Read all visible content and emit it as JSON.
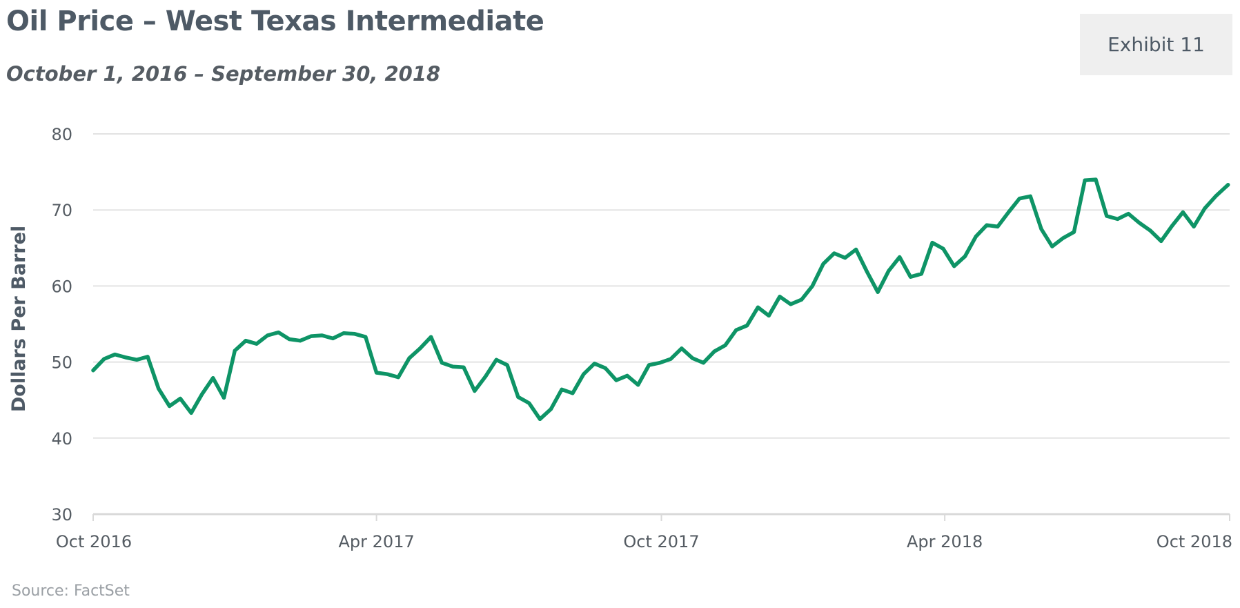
{
  "header": {
    "title": "Oil Price – West Texas Intermediate",
    "subtitle": "October 1, 2016 – September 30, 2018",
    "exhibit_label": "Exhibit 11"
  },
  "footer": {
    "source": "Source: FactSet"
  },
  "colors": {
    "line": "#0e9466",
    "grid": "#d9d9d9",
    "axis": "#d9d9d9",
    "text": "#4e5a66"
  },
  "chart_data": {
    "type": "line",
    "title": "Oil Price – West Texas Intermediate",
    "subtitle": "October 1, 2016 – September 30, 2018",
    "xlabel": "",
    "ylabel": "Dollars Per Barrel",
    "ylim": [
      30,
      80
    ],
    "yticks": [
      30,
      40,
      50,
      60,
      70,
      80
    ],
    "xlim": [
      "2016-10-01",
      "2018-10-01"
    ],
    "xticks": [
      {
        "date": "2016-10-01",
        "label": "Oct 2016"
      },
      {
        "date": "2017-04-01",
        "label": "Apr 2017"
      },
      {
        "date": "2017-10-01",
        "label": "Oct 2017"
      },
      {
        "date": "2018-04-01",
        "label": "Apr 2018"
      },
      {
        "date": "2018-10-01",
        "label": "Oct 2018"
      }
    ],
    "grid": true,
    "legend": "none",
    "series": [
      {
        "x": [
          "2016-10-01",
          "2016-10-08",
          "2016-10-15",
          "2016-10-22",
          "2016-10-29",
          "2016-11-05",
          "2016-11-12",
          "2016-11-19",
          "2016-11-26",
          "2016-12-03",
          "2016-12-10",
          "2016-12-17",
          "2016-12-24",
          "2016-12-31",
          "2017-01-07",
          "2017-01-14",
          "2017-01-21",
          "2017-01-28",
          "2017-02-04",
          "2017-02-11",
          "2017-02-18",
          "2017-02-25",
          "2017-03-04",
          "2017-03-11",
          "2017-03-18",
          "2017-03-25",
          "2017-04-01",
          "2017-04-08",
          "2017-04-15",
          "2017-04-22",
          "2017-04-29",
          "2017-05-06",
          "2017-05-13",
          "2017-05-20",
          "2017-05-27",
          "2017-06-03",
          "2017-06-10",
          "2017-06-17",
          "2017-06-24",
          "2017-07-01",
          "2017-07-08",
          "2017-07-15",
          "2017-07-22",
          "2017-07-29",
          "2017-08-05",
          "2017-08-12",
          "2017-08-19",
          "2017-08-26",
          "2017-09-02",
          "2017-09-09",
          "2017-09-16",
          "2017-09-23",
          "2017-09-30",
          "2017-10-07",
          "2017-10-14",
          "2017-10-21",
          "2017-10-28",
          "2017-11-04",
          "2017-11-11",
          "2017-11-18",
          "2017-11-25",
          "2017-12-02",
          "2017-12-09",
          "2017-12-16",
          "2017-12-23",
          "2017-12-30",
          "2018-01-06",
          "2018-01-13",
          "2018-01-20",
          "2018-01-27",
          "2018-02-03",
          "2018-02-10",
          "2018-02-17",
          "2018-02-24",
          "2018-03-03",
          "2018-03-10",
          "2018-03-17",
          "2018-03-24",
          "2018-03-31",
          "2018-04-07",
          "2018-04-14",
          "2018-04-21",
          "2018-04-28",
          "2018-05-05",
          "2018-05-12",
          "2018-05-19",
          "2018-05-26",
          "2018-06-02",
          "2018-06-09",
          "2018-06-16",
          "2018-06-23",
          "2018-06-30",
          "2018-07-07",
          "2018-07-14",
          "2018-07-21",
          "2018-07-28",
          "2018-08-04",
          "2018-08-11",
          "2018-08-18",
          "2018-08-25",
          "2018-09-01",
          "2018-09-08",
          "2018-09-15",
          "2018-09-22",
          "2018-09-30"
        ],
        "y": [
          48.9,
          50.4,
          51.0,
          50.6,
          50.3,
          50.7,
          46.5,
          44.2,
          45.2,
          43.3,
          45.8,
          47.9,
          45.3,
          51.5,
          52.8,
          52.4,
          53.5,
          53.9,
          53.0,
          52.8,
          53.4,
          53.5,
          53.1,
          53.8,
          53.7,
          53.3,
          48.6,
          48.4,
          48.0,
          50.5,
          51.8,
          53.3,
          49.9,
          49.4,
          49.3,
          46.2,
          48.1,
          50.3,
          49.6,
          45.4,
          44.6,
          42.5,
          43.8,
          46.4,
          45.9,
          48.4,
          49.8,
          49.2,
          47.6,
          48.2,
          47.0,
          49.6,
          49.9,
          50.4,
          51.8,
          50.5,
          49.9,
          51.4,
          52.2,
          54.2,
          54.8,
          57.2,
          56.1,
          58.6,
          57.6,
          58.2,
          60.0,
          62.9,
          64.3,
          63.7,
          64.8,
          61.9,
          59.2,
          62.0,
          63.8,
          61.2,
          61.6,
          65.7,
          64.9,
          62.6,
          63.9,
          66.5,
          68.0,
          67.8,
          69.7,
          71.5,
          71.8,
          67.5,
          65.2,
          66.3,
          67.1,
          73.9,
          74.0,
          69.2,
          68.8,
          69.5,
          68.3,
          67.3,
          65.9,
          67.9,
          69.7,
          67.8,
          70.2,
          71.8,
          73.3
        ]
      }
    ]
  }
}
